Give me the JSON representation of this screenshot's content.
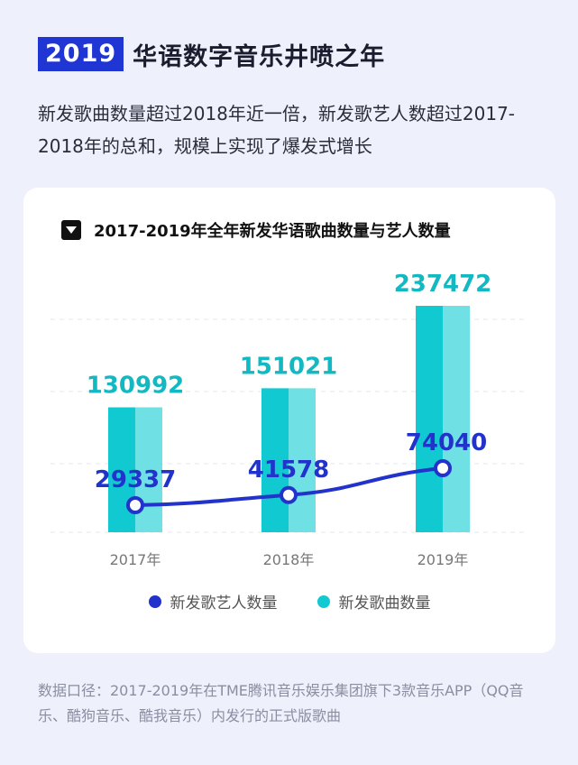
{
  "header": {
    "year_badge": "2019",
    "title": "华语数字音乐井喷之年",
    "subtitle": "新发歌曲数量超过2018年近一倍，新发歌艺人数超过2017-2018年的总和，规模上实现了爆发式增长"
  },
  "colors": {
    "accent_blue": "#1f35d4",
    "bar_cyan": "#11c9d1",
    "bar_cyan_light": "#6fe0e4",
    "line_blue": "#2233cc",
    "songs_label": "#12b9c2"
  },
  "chart_data": {
    "type": "bar",
    "title": "2017-2019年全年新发华语歌曲数量与艺人数量",
    "categories": [
      "2017年",
      "2018年",
      "2019年"
    ],
    "series": [
      {
        "name": "新发歌曲数量",
        "type": "bar",
        "values": [
          130992,
          151021,
          237472
        ]
      },
      {
        "name": "新发歌艺人数量",
        "type": "line",
        "values": [
          29337,
          41578,
          74040
        ]
      }
    ],
    "legend": [
      {
        "name": "新发歌艺人数量",
        "color": "#2233cc"
      },
      {
        "name": "新发歌曲数量",
        "color": "#11c9d1"
      }
    ],
    "legend_position": "bottom",
    "grid": true
  },
  "footnote": "数据口径：2017-2019年在TME腾讯音乐娱乐集团旗下3款音乐APP（QQ音乐、酷狗音乐、酷我音乐）内发行的正式版歌曲"
}
